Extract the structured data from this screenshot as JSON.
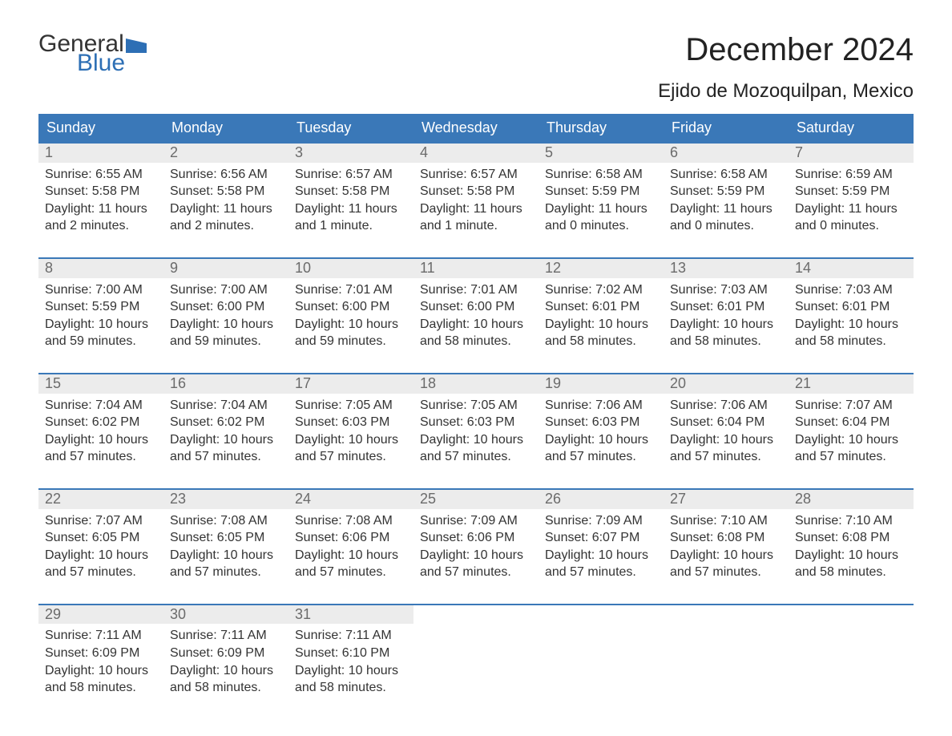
{
  "brand": {
    "word1": "General",
    "word2": "Blue",
    "word1_color": "#333333",
    "word2_color": "#2d6fb5",
    "flag_color": "#2d6fb5"
  },
  "title": "December 2024",
  "subtitle": "Ejido de Mozoquilpan, Mexico",
  "colors": {
    "header_bg": "#3a78b8",
    "header_text": "#ffffff",
    "week_border": "#3a78b8",
    "daynum_bg": "#ececec",
    "daynum_text": "#6b6b6b",
    "body_text": "#333333",
    "page_bg": "#ffffff"
  },
  "typography": {
    "title_fontsize": 40,
    "subtitle_fontsize": 24,
    "weekday_fontsize": 18,
    "daynum_fontsize": 18,
    "body_fontsize": 16,
    "logo_fontsize": 30
  },
  "weekdays": [
    "Sunday",
    "Monday",
    "Tuesday",
    "Wednesday",
    "Thursday",
    "Friday",
    "Saturday"
  ],
  "weeks": [
    [
      {
        "num": "1",
        "sunrise": "Sunrise: 6:55 AM",
        "sunset": "Sunset: 5:58 PM",
        "daylight1": "Daylight: 11 hours",
        "daylight2": "and 2 minutes."
      },
      {
        "num": "2",
        "sunrise": "Sunrise: 6:56 AM",
        "sunset": "Sunset: 5:58 PM",
        "daylight1": "Daylight: 11 hours",
        "daylight2": "and 2 minutes."
      },
      {
        "num": "3",
        "sunrise": "Sunrise: 6:57 AM",
        "sunset": "Sunset: 5:58 PM",
        "daylight1": "Daylight: 11 hours",
        "daylight2": "and 1 minute."
      },
      {
        "num": "4",
        "sunrise": "Sunrise: 6:57 AM",
        "sunset": "Sunset: 5:58 PM",
        "daylight1": "Daylight: 11 hours",
        "daylight2": "and 1 minute."
      },
      {
        "num": "5",
        "sunrise": "Sunrise: 6:58 AM",
        "sunset": "Sunset: 5:59 PM",
        "daylight1": "Daylight: 11 hours",
        "daylight2": "and 0 minutes."
      },
      {
        "num": "6",
        "sunrise": "Sunrise: 6:58 AM",
        "sunset": "Sunset: 5:59 PM",
        "daylight1": "Daylight: 11 hours",
        "daylight2": "and 0 minutes."
      },
      {
        "num": "7",
        "sunrise": "Sunrise: 6:59 AM",
        "sunset": "Sunset: 5:59 PM",
        "daylight1": "Daylight: 11 hours",
        "daylight2": "and 0 minutes."
      }
    ],
    [
      {
        "num": "8",
        "sunrise": "Sunrise: 7:00 AM",
        "sunset": "Sunset: 5:59 PM",
        "daylight1": "Daylight: 10 hours",
        "daylight2": "and 59 minutes."
      },
      {
        "num": "9",
        "sunrise": "Sunrise: 7:00 AM",
        "sunset": "Sunset: 6:00 PM",
        "daylight1": "Daylight: 10 hours",
        "daylight2": "and 59 minutes."
      },
      {
        "num": "10",
        "sunrise": "Sunrise: 7:01 AM",
        "sunset": "Sunset: 6:00 PM",
        "daylight1": "Daylight: 10 hours",
        "daylight2": "and 59 minutes."
      },
      {
        "num": "11",
        "sunrise": "Sunrise: 7:01 AM",
        "sunset": "Sunset: 6:00 PM",
        "daylight1": "Daylight: 10 hours",
        "daylight2": "and 58 minutes."
      },
      {
        "num": "12",
        "sunrise": "Sunrise: 7:02 AM",
        "sunset": "Sunset: 6:01 PM",
        "daylight1": "Daylight: 10 hours",
        "daylight2": "and 58 minutes."
      },
      {
        "num": "13",
        "sunrise": "Sunrise: 7:03 AM",
        "sunset": "Sunset: 6:01 PM",
        "daylight1": "Daylight: 10 hours",
        "daylight2": "and 58 minutes."
      },
      {
        "num": "14",
        "sunrise": "Sunrise: 7:03 AM",
        "sunset": "Sunset: 6:01 PM",
        "daylight1": "Daylight: 10 hours",
        "daylight2": "and 58 minutes."
      }
    ],
    [
      {
        "num": "15",
        "sunrise": "Sunrise: 7:04 AM",
        "sunset": "Sunset: 6:02 PM",
        "daylight1": "Daylight: 10 hours",
        "daylight2": "and 57 minutes."
      },
      {
        "num": "16",
        "sunrise": "Sunrise: 7:04 AM",
        "sunset": "Sunset: 6:02 PM",
        "daylight1": "Daylight: 10 hours",
        "daylight2": "and 57 minutes."
      },
      {
        "num": "17",
        "sunrise": "Sunrise: 7:05 AM",
        "sunset": "Sunset: 6:03 PM",
        "daylight1": "Daylight: 10 hours",
        "daylight2": "and 57 minutes."
      },
      {
        "num": "18",
        "sunrise": "Sunrise: 7:05 AM",
        "sunset": "Sunset: 6:03 PM",
        "daylight1": "Daylight: 10 hours",
        "daylight2": "and 57 minutes."
      },
      {
        "num": "19",
        "sunrise": "Sunrise: 7:06 AM",
        "sunset": "Sunset: 6:03 PM",
        "daylight1": "Daylight: 10 hours",
        "daylight2": "and 57 minutes."
      },
      {
        "num": "20",
        "sunrise": "Sunrise: 7:06 AM",
        "sunset": "Sunset: 6:04 PM",
        "daylight1": "Daylight: 10 hours",
        "daylight2": "and 57 minutes."
      },
      {
        "num": "21",
        "sunrise": "Sunrise: 7:07 AM",
        "sunset": "Sunset: 6:04 PM",
        "daylight1": "Daylight: 10 hours",
        "daylight2": "and 57 minutes."
      }
    ],
    [
      {
        "num": "22",
        "sunrise": "Sunrise: 7:07 AM",
        "sunset": "Sunset: 6:05 PM",
        "daylight1": "Daylight: 10 hours",
        "daylight2": "and 57 minutes."
      },
      {
        "num": "23",
        "sunrise": "Sunrise: 7:08 AM",
        "sunset": "Sunset: 6:05 PM",
        "daylight1": "Daylight: 10 hours",
        "daylight2": "and 57 minutes."
      },
      {
        "num": "24",
        "sunrise": "Sunrise: 7:08 AM",
        "sunset": "Sunset: 6:06 PM",
        "daylight1": "Daylight: 10 hours",
        "daylight2": "and 57 minutes."
      },
      {
        "num": "25",
        "sunrise": "Sunrise: 7:09 AM",
        "sunset": "Sunset: 6:06 PM",
        "daylight1": "Daylight: 10 hours",
        "daylight2": "and 57 minutes."
      },
      {
        "num": "26",
        "sunrise": "Sunrise: 7:09 AM",
        "sunset": "Sunset: 6:07 PM",
        "daylight1": "Daylight: 10 hours",
        "daylight2": "and 57 minutes."
      },
      {
        "num": "27",
        "sunrise": "Sunrise: 7:10 AM",
        "sunset": "Sunset: 6:08 PM",
        "daylight1": "Daylight: 10 hours",
        "daylight2": "and 57 minutes."
      },
      {
        "num": "28",
        "sunrise": "Sunrise: 7:10 AM",
        "sunset": "Sunset: 6:08 PM",
        "daylight1": "Daylight: 10 hours",
        "daylight2": "and 58 minutes."
      }
    ],
    [
      {
        "num": "29",
        "sunrise": "Sunrise: 7:11 AM",
        "sunset": "Sunset: 6:09 PM",
        "daylight1": "Daylight: 10 hours",
        "daylight2": "and 58 minutes."
      },
      {
        "num": "30",
        "sunrise": "Sunrise: 7:11 AM",
        "sunset": "Sunset: 6:09 PM",
        "daylight1": "Daylight: 10 hours",
        "daylight2": "and 58 minutes."
      },
      {
        "num": "31",
        "sunrise": "Sunrise: 7:11 AM",
        "sunset": "Sunset: 6:10 PM",
        "daylight1": "Daylight: 10 hours",
        "daylight2": "and 58 minutes."
      },
      null,
      null,
      null,
      null
    ]
  ]
}
